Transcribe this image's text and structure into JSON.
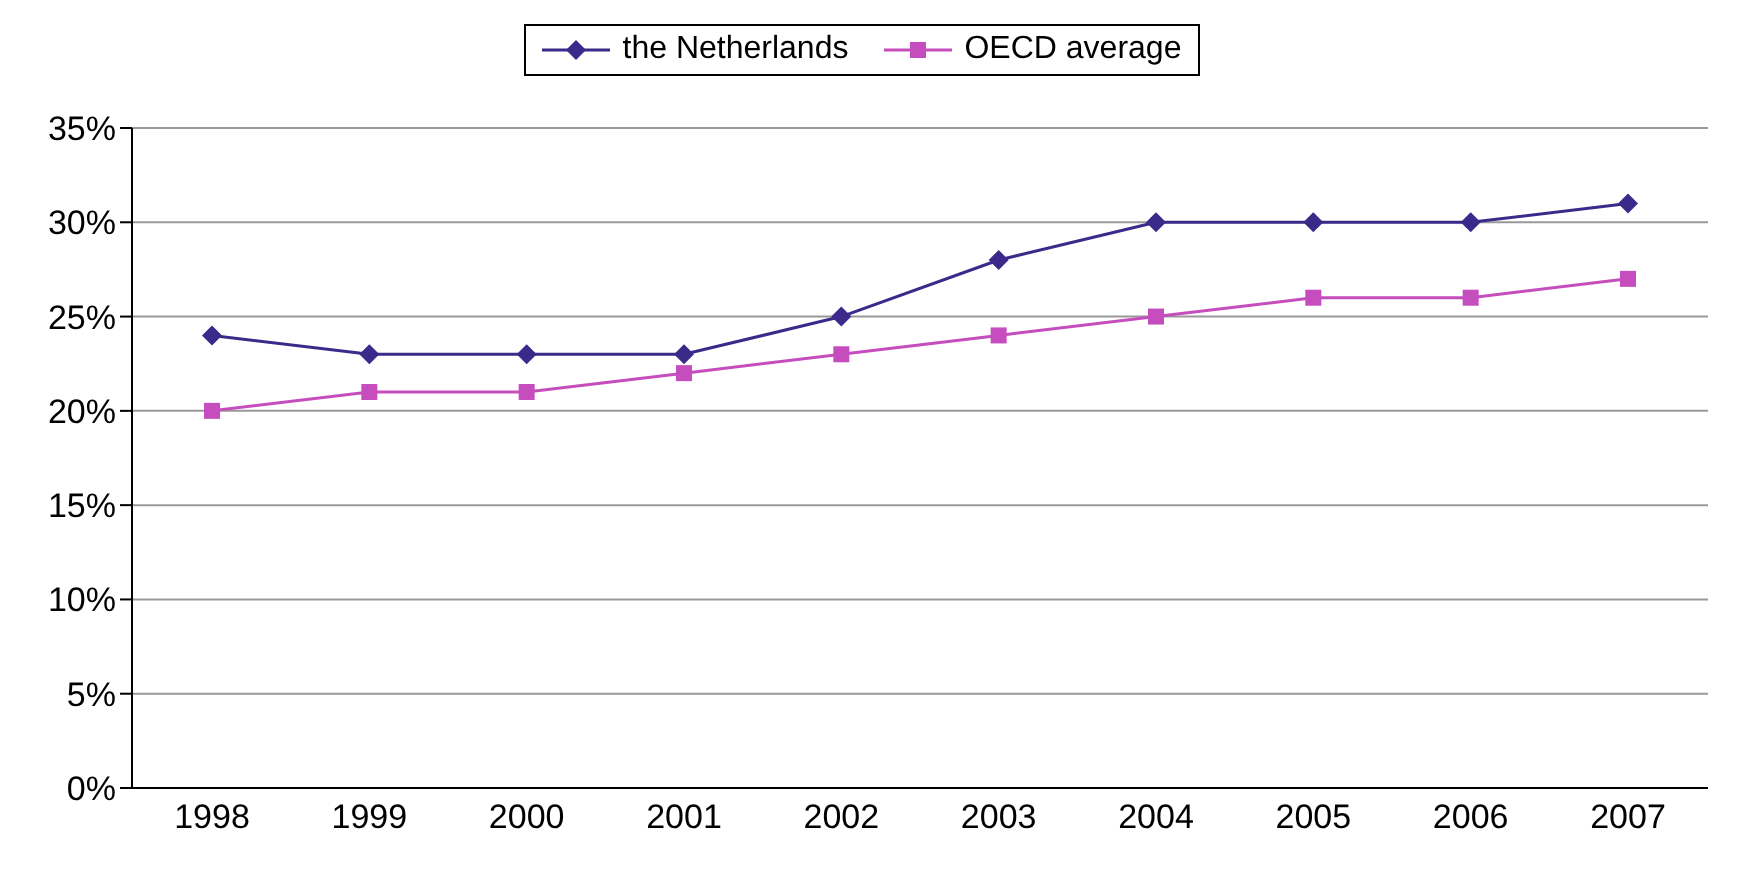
{
  "chart_data": {
    "type": "line",
    "categories": [
      "1998",
      "1999",
      "2000",
      "2001",
      "2002",
      "2003",
      "2004",
      "2005",
      "2006",
      "2007"
    ],
    "series": [
      {
        "name": "the Netherlands",
        "color": "#3b2a8a",
        "marker": "diamond",
        "values": [
          24,
          23,
          23,
          23,
          25,
          28,
          30,
          30,
          30,
          31
        ]
      },
      {
        "name": "OECD average",
        "color": "#c64dbd",
        "marker": "square",
        "values": [
          20,
          21,
          21,
          22,
          23,
          24,
          25,
          26,
          26,
          27
        ]
      }
    ],
    "ylim": [
      0,
      35
    ],
    "yticks": [
      {
        "value": 0,
        "label": "0%"
      },
      {
        "value": 5,
        "label": "5%"
      },
      {
        "value": 10,
        "label": "10%"
      },
      {
        "value": 15,
        "label": "15%"
      },
      {
        "value": 20,
        "label": "20%"
      },
      {
        "value": 25,
        "label": "25%"
      },
      {
        "value": 30,
        "label": "30%"
      },
      {
        "value": 35,
        "label": "35%"
      }
    ],
    "grid": "y",
    "legend": "top"
  }
}
